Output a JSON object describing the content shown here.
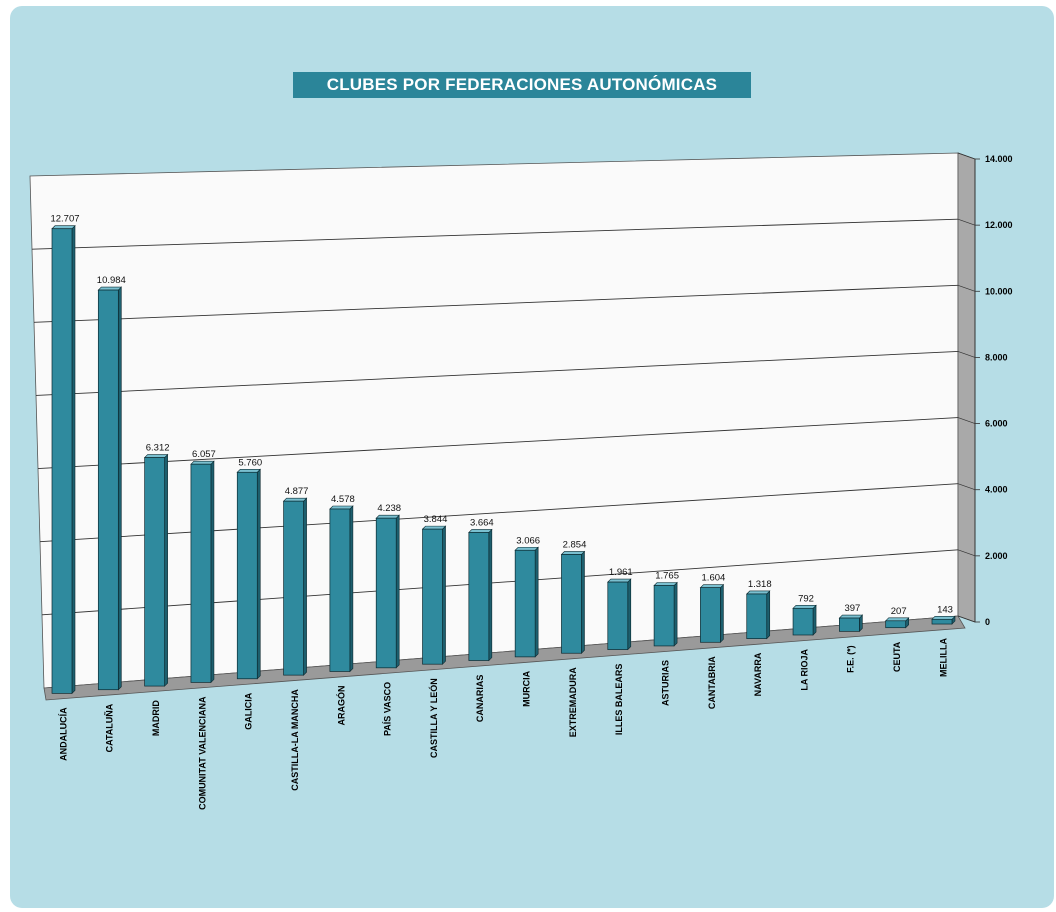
{
  "title": "CLUBES POR FEDERACIONES AUTONÓMICAS",
  "chart_data": {
    "type": "bar",
    "title": "CLUBES POR FEDERACIONES AUTONÓMICAS",
    "categories": [
      "ANDALUCÍA",
      "CATALUÑA",
      "MADRID",
      "COMUNITAT VALENCIANA",
      "GALICIA",
      "CASTILLA-LA MANCHA",
      "ARAGÓN",
      "PAÍS VASCO",
      "CASTILLA Y LEÓN",
      "CANARIAS",
      "MURCIA",
      "EXTREMADURA",
      "ILLES BALEARS",
      "ASTURIAS",
      "CANTABRIA",
      "NAVARRA",
      "LA RIOJA",
      "F.E. (*)",
      "CEUTA",
      "MELILLA"
    ],
    "values": [
      12707,
      10984,
      6312,
      6057,
      5760,
      4877,
      4578,
      4238,
      3844,
      3664,
      3066,
      2854,
      1961,
      1765,
      1604,
      1318,
      792,
      397,
      207,
      143
    ],
    "value_labels": [
      "12.707",
      "10.984",
      "6.312",
      "6.057",
      "5.760",
      "4.877",
      "4.578",
      "4.238",
      "3.844",
      "3.664",
      "3.066",
      "2.854",
      "1.961",
      "1.765",
      "1.604",
      "1.318",
      "792",
      "397",
      "207",
      "143"
    ],
    "ylim": [
      0,
      14000
    ],
    "yticks": [
      0,
      2000,
      4000,
      6000,
      8000,
      10000,
      12000,
      14000
    ],
    "ytick_labels": [
      "0",
      "2.000",
      "4.000",
      "6.000",
      "8.000",
      "10.000",
      "12.000",
      "14.000"
    ],
    "grid": true,
    "style": "3d",
    "colors": {
      "bar_front": "#2f8a9e",
      "bar_top": "#7ac0d0",
      "bar_side": "#1d5f6e",
      "title_bg": "#2b8599",
      "panel": "#b6dde6"
    }
  }
}
